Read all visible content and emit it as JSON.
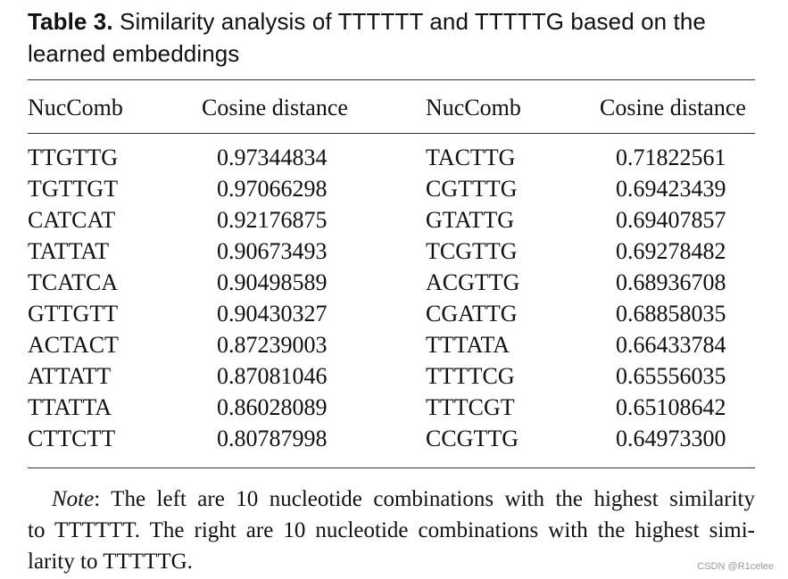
{
  "caption": {
    "label": "Table 3.",
    "line1": "Similarity analysis of TTTTTT and TTTTTG based on the",
    "line2": "learned embeddings"
  },
  "table": {
    "headers": [
      "NucComb",
      "Cosine distance",
      "NucComb",
      "Cosine distance"
    ],
    "rows": [
      [
        "TTGTTG",
        "0.97344834",
        "TACTTG",
        "0.71822561"
      ],
      [
        "TGTTGT",
        "0.97066298",
        "CGTTTG",
        "0.69423439"
      ],
      [
        "CATCAT",
        "0.92176875",
        "GTATTG",
        "0.69407857"
      ],
      [
        "TATTAT",
        "0.90673493",
        "TCGTTG",
        "0.69278482"
      ],
      [
        "TCATCA",
        "0.90498589",
        "ACGTTG",
        "0.68936708"
      ],
      [
        "GTTGTT",
        "0.90430327",
        "CGATTG",
        "0.68858035"
      ],
      [
        "ACTACT",
        "0.87239003",
        "TTTATA",
        "0.66433784"
      ],
      [
        "ATTATT",
        "0.87081046",
        "TTTTCG",
        "0.65556035"
      ],
      [
        "TTATTA",
        "0.86028089",
        "TTTCGT",
        "0.65108642"
      ],
      [
        "CTTCTT",
        "0.80787998",
        "CCGTTG",
        "0.64973300"
      ]
    ]
  },
  "note": {
    "label": "Note",
    "line1": ": The left are 10 nucleotide combinations with the highest similarity",
    "line2": "to TTTTTT. The right are 10 nucleotide combinations with the highest simi-",
    "line3": "larity to TTTTTG."
  },
  "watermark": "CSDN @R1celee"
}
